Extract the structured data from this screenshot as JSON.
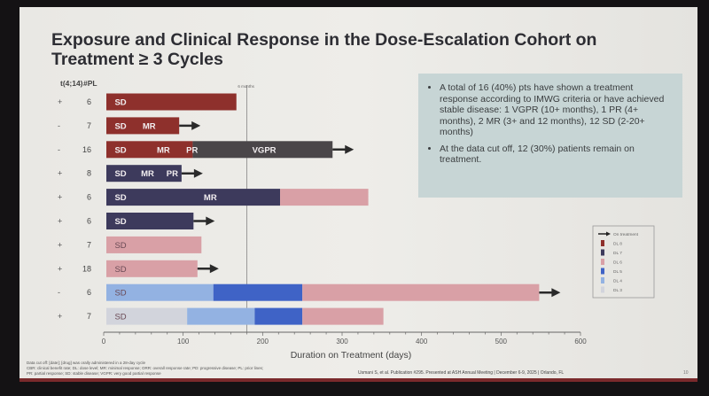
{
  "slide": {
    "title": "Exposure and Clinical Response in the Dose-Escalation Cohort on Treatment ≥ 3 Cycles",
    "info_box": {
      "bullets": [
        "A total of 16 (40%) pts have shown a treatment response according to IMWG criteria or have achieved stable disease: 1 VGPR (10+ months), 1 PR (4+ months), 2 MR (3+ and 12 months), 12 SD (2-20+ months)",
        "At the data cut off, 12 (30%) patients remain on treatment."
      ]
    },
    "footnotes": [
      "Data cut off: [date]; [drug] was orally administered in a 28-day cycle",
      "CBR: clinical benefit rate; DL: dose level; MR: minimal response; ORR: overall response rate; PD: progressive disease; PL: prior lines;",
      "PR: partial response; SD: stable disease; VGPR: very good partial response"
    ],
    "citation": "Usmani S, et al. Publication #295. Presented at ASH Annual Meeting | December 6-9, 2025 | Orlando, FL",
    "page_number": "10"
  },
  "chart_data": {
    "type": "swimmer",
    "xlabel": "Duration on Treatment (days)",
    "xlim": [
      0,
      600
    ],
    "xticks": [
      0,
      100,
      200,
      300,
      400,
      500,
      600
    ],
    "reference_line": {
      "x": 180,
      "label": "6 months"
    },
    "column_headers": [
      "t(4;14)",
      "#PL"
    ],
    "colors": {
      "DL 8": "#8e302c",
      "DL 7": "#3d3a5c",
      "DL 7b": "#4a4649",
      "DL 6": "#d9a0a6",
      "DL 5": "#3f63c6",
      "DL 4": "#93b2e2",
      "DL 3": "#d2d4dc",
      "arrow": "#2a2a2a"
    },
    "legend": {
      "placement": "bottom-right",
      "entries": [
        "On treatment",
        "DL 8",
        "DL 7",
        "DL 6",
        "DL 5",
        "DL 4",
        "DL 3"
      ]
    },
    "rows": [
      {
        "t414": "+",
        "pl": "6",
        "on_treatment": false,
        "segments": [
          {
            "dl": "DL 8",
            "start": 0,
            "end": 167
          }
        ],
        "responses": [
          {
            "label": "SD",
            "at": 5
          }
        ]
      },
      {
        "t414": "-",
        "pl": "7",
        "on_treatment": true,
        "segments": [
          {
            "dl": "DL 8",
            "start": 0,
            "end": 95
          }
        ],
        "responses": [
          {
            "label": "SD",
            "at": 5
          },
          {
            "label": "MR",
            "at": 40
          }
        ]
      },
      {
        "t414": "-",
        "pl": "16",
        "on_treatment": true,
        "segments": [
          {
            "dl": "DL 8",
            "start": 0,
            "end": 112
          },
          {
            "dl": "DL 7b",
            "start": 112,
            "end": 288
          }
        ],
        "responses": [
          {
            "label": "SD",
            "at": 5
          },
          {
            "label": "MR",
            "at": 58
          },
          {
            "label": "PR",
            "at": 95
          },
          {
            "label": "VGPR",
            "at": 178
          }
        ]
      },
      {
        "t414": "+",
        "pl": "8",
        "on_treatment": true,
        "segments": [
          {
            "dl": "DL 7",
            "start": 0,
            "end": 98
          }
        ],
        "responses": [
          {
            "label": "SD",
            "at": 5
          },
          {
            "label": "MR",
            "at": 38
          },
          {
            "label": "PR",
            "at": 70
          }
        ]
      },
      {
        "t414": "+",
        "pl": "6",
        "on_treatment": false,
        "segments": [
          {
            "dl": "DL 7",
            "start": 0,
            "end": 222
          },
          {
            "dl": "DL 6",
            "start": 222,
            "end": 333
          }
        ],
        "responses": [
          {
            "label": "SD",
            "at": 5
          },
          {
            "label": "MR",
            "at": 117
          }
        ]
      },
      {
        "t414": "+",
        "pl": "6",
        "on_treatment": true,
        "segments": [
          {
            "dl": "DL 7",
            "start": 0,
            "end": 113
          }
        ],
        "responses": [
          {
            "label": "SD",
            "at": 5
          }
        ]
      },
      {
        "t414": "+",
        "pl": "7",
        "on_treatment": false,
        "segments": [
          {
            "dl": "DL 6",
            "start": 0,
            "end": 123
          }
        ],
        "responses": [
          {
            "label": "SD",
            "at": 5
          }
        ]
      },
      {
        "t414": "+",
        "pl": "18",
        "on_treatment": true,
        "segments": [
          {
            "dl": "DL 6",
            "start": 0,
            "end": 118
          }
        ],
        "responses": [
          {
            "label": "SD",
            "at": 5
          }
        ]
      },
      {
        "t414": "-",
        "pl": "6",
        "on_treatment": true,
        "segments": [
          {
            "dl": "DL 4",
            "start": 0,
            "end": 138
          },
          {
            "dl": "DL 5",
            "start": 138,
            "end": 250
          },
          {
            "dl": "DL 6",
            "start": 250,
            "end": 548
          }
        ],
        "responses": [
          {
            "label": "SD",
            "at": 5
          }
        ]
      },
      {
        "t414": "+",
        "pl": "7",
        "on_treatment": false,
        "segments": [
          {
            "dl": "DL 3",
            "start": 0,
            "end": 105
          },
          {
            "dl": "DL 4",
            "start": 105,
            "end": 190
          },
          {
            "dl": "DL 5",
            "start": 190,
            "end": 250
          },
          {
            "dl": "DL 6",
            "start": 250,
            "end": 352
          }
        ],
        "responses": [
          {
            "label": "SD",
            "at": 5
          }
        ]
      }
    ]
  }
}
